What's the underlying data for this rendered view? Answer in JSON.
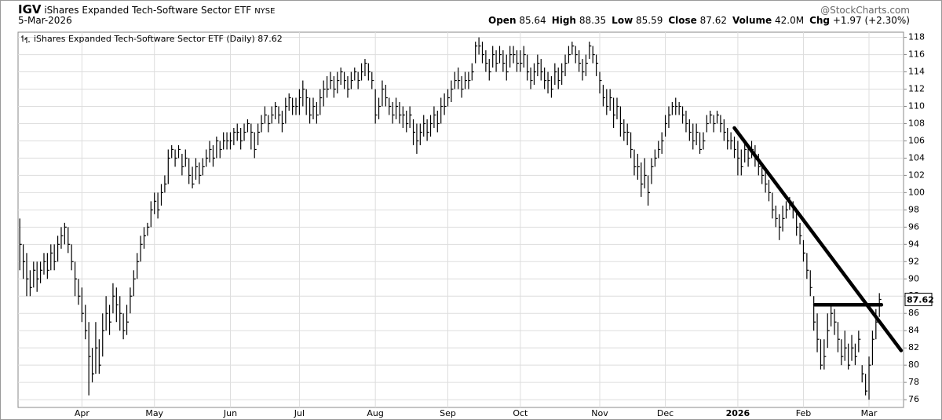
{
  "header": {
    "symbol": "IGV",
    "name": "iShares Expanded Tech-Software Sector ETF",
    "exchange": "NYSE",
    "source": "@StockCharts.com",
    "date": "5-Mar-2026",
    "stats": [
      {
        "label": "Open",
        "value": "85.64"
      },
      {
        "label": "High",
        "value": "88.35"
      },
      {
        "label": "Low",
        "value": "85.59"
      },
      {
        "label": "Close",
        "value": "87.62"
      },
      {
        "label": "Volume",
        "value": "42.0M"
      },
      {
        "label": "Chg",
        "value": "+1.97 (+2.30%)"
      }
    ]
  },
  "chart_data": {
    "type": "ohlc",
    "legend": "iShares Expanded Tech-Software Sector ETF (Daily)",
    "color": "#000000",
    "grid": true,
    "categories": [
      null,
      null,
      null,
      null,
      null,
      null,
      null,
      null,
      null,
      null,
      null,
      null,
      null,
      null,
      null,
      null,
      null,
      null,
      "Apr",
      null,
      null,
      null,
      null,
      null,
      null,
      null,
      null,
      null,
      null,
      null,
      null,
      null,
      null,
      null,
      null,
      null,
      null,
      null,
      null,
      "May",
      null,
      null,
      null,
      null,
      null,
      null,
      null,
      null,
      null,
      null,
      null,
      null,
      null,
      null,
      null,
      null,
      null,
      null,
      null,
      null,
      null,
      "Jun",
      null,
      null,
      null,
      null,
      null,
      null,
      null,
      null,
      null,
      null,
      null,
      null,
      null,
      null,
      null,
      null,
      null,
      null,
      null,
      "Jul",
      null,
      null,
      null,
      null,
      null,
      null,
      null,
      null,
      null,
      null,
      null,
      null,
      null,
      null,
      null,
      null,
      null,
      null,
      null,
      null,
      null,
      "Aug",
      null,
      null,
      null,
      null,
      null,
      null,
      null,
      null,
      null,
      null,
      null,
      null,
      null,
      null,
      null,
      null,
      null,
      null,
      null,
      null,
      "Sep",
      null,
      null,
      null,
      null,
      null,
      null,
      null,
      null,
      null,
      null,
      null,
      null,
      null,
      null,
      null,
      null,
      null,
      null,
      null,
      null,
      "Oct",
      null,
      null,
      null,
      null,
      null,
      null,
      null,
      null,
      null,
      null,
      null,
      null,
      null,
      null,
      null,
      null,
      null,
      null,
      null,
      null,
      null,
      null,
      "Nov",
      null,
      null,
      null,
      null,
      null,
      null,
      null,
      null,
      null,
      null,
      null,
      null,
      null,
      null,
      null,
      null,
      null,
      null,
      "Dec",
      null,
      null,
      null,
      null,
      null,
      null,
      null,
      null,
      null,
      null,
      null,
      null,
      null,
      null,
      null,
      null,
      null,
      null,
      null,
      null,
      "2026",
      null,
      null,
      null,
      null,
      null,
      null,
      null,
      null,
      null,
      null,
      null,
      null,
      null,
      null,
      null,
      null,
      null,
      null,
      "Feb",
      null,
      null,
      null,
      null,
      null,
      null,
      null,
      null,
      null,
      null,
      null,
      null,
      null,
      null,
      null,
      null,
      null,
      null,
      "Mar",
      null,
      null,
      null
    ],
    "high": [
      97,
      94,
      93,
      91,
      92,
      92,
      92,
      93,
      93,
      94,
      94,
      95,
      96,
      96.5,
      96,
      94,
      92,
      90,
      89,
      87,
      85,
      82,
      85,
      83,
      86,
      88,
      87,
      89.5,
      89,
      88,
      86,
      87,
      89,
      91,
      93,
      95,
      96,
      96.5,
      99,
      100,
      100,
      101,
      102,
      105,
      105.5,
      105,
      105.5,
      104.5,
      105,
      104,
      103,
      104,
      103.5,
      104,
      105,
      106,
      105.5,
      106.5,
      106,
      107,
      107,
      107,
      107.5,
      108,
      107.5,
      108,
      108.5,
      108,
      107,
      108,
      109,
      110,
      109,
      110,
      110.5,
      110,
      109.5,
      111,
      111.5,
      111,
      111,
      112,
      113,
      112,
      111,
      111,
      110.5,
      112,
      113,
      113.5,
      114,
      113.5,
      114,
      114.5,
      114,
      113.5,
      114,
      114.5,
      114,
      115,
      115.5,
      115,
      114,
      112,
      111,
      113,
      112.5,
      111,
      110.5,
      111,
      110.5,
      110,
      109.5,
      110,
      108.5,
      108,
      108,
      109,
      108.5,
      109,
      110,
      109.5,
      111,
      111.5,
      112,
      113,
      114,
      114.5,
      113.5,
      114,
      114,
      115,
      117.5,
      118,
      117.5,
      116.5,
      115.5,
      117,
      116.5,
      117,
      116.5,
      116,
      117,
      117,
      116.5,
      116.5,
      117,
      116,
      114.5,
      115,
      116,
      115.5,
      114.5,
      114,
      113.5,
      115,
      114.5,
      115,
      116,
      117,
      117.5,
      117,
      116.5,
      115.5,
      116,
      117.5,
      117,
      116,
      114,
      112.5,
      112,
      112,
      111,
      111,
      110,
      108.5,
      108,
      107,
      105,
      104.5,
      103.5,
      104,
      102,
      104,
      105,
      106,
      107,
      109,
      110,
      110.5,
      111,
      110.5,
      110,
      109.5,
      108.5,
      108,
      108,
      107,
      107,
      109,
      109.5,
      109,
      109.5,
      109,
      108.5,
      107.5,
      107,
      106.5,
      106,
      105,
      106,
      105.5,
      106,
      105.5,
      104.5,
      103.5,
      102.5,
      101.5,
      100,
      98.5,
      97.5,
      98.5,
      99,
      99.5,
      99,
      98,
      96.5,
      94.5,
      93,
      91,
      88,
      86,
      83,
      83,
      86,
      87,
      86.5,
      85,
      83,
      84,
      82.5,
      83.5,
      82.5,
      84,
      80,
      79,
      81,
      84,
      86.5,
      88.35
    ],
    "low": [
      91,
      90,
      88,
      88,
      89,
      88.5,
      89.5,
      90.5,
      90,
      91,
      91,
      92,
      93.5,
      94,
      93,
      91,
      88,
      87,
      85,
      83,
      76.5,
      78,
      79,
      79,
      81,
      84,
      83.5,
      86,
      85,
      84,
      83,
      83.5,
      86,
      88,
      90,
      92,
      93.5,
      95,
      96,
      97.5,
      97,
      98.5,
      100,
      101,
      104,
      103,
      104,
      102,
      103,
      101,
      100.5,
      101.5,
      101,
      102,
      103,
      103.5,
      103,
      104,
      104,
      105,
      105,
      105,
      105.5,
      106,
      105,
      106,
      107,
      105,
      104,
      105.5,
      107,
      108,
      107,
      108,
      108.5,
      108,
      107,
      108,
      109.5,
      109,
      109,
      109,
      110,
      109,
      108,
      108.5,
      108,
      109,
      110,
      111,
      112,
      111,
      111.5,
      112.5,
      112,
      111,
      112,
      113,
      112,
      113,
      113.5,
      113,
      112,
      108,
      108.5,
      110,
      110,
      109,
      108,
      108.5,
      108,
      107.5,
      107,
      107.5,
      105.5,
      104.5,
      105.5,
      106.5,
      106,
      106.5,
      107.5,
      107,
      108,
      109,
      110,
      110.5,
      112,
      112,
      111,
      112,
      112,
      113,
      115,
      116,
      115,
      114,
      113,
      114.5,
      114,
      115,
      114,
      113,
      114.5,
      115,
      114,
      114,
      114.5,
      113,
      112,
      112.5,
      113.5,
      113,
      112,
      111.5,
      111,
      112.5,
      112,
      112.5,
      113.5,
      115,
      116,
      115,
      114,
      113,
      113.5,
      115.5,
      115,
      113.5,
      111.5,
      110,
      109,
      109.5,
      107.5,
      108.5,
      106.5,
      106,
      105.5,
      104,
      102,
      101.5,
      99.5,
      100.5,
      98.5,
      101,
      103,
      104,
      104.5,
      106.5,
      107.5,
      109,
      109,
      109,
      108,
      107,
      106,
      105,
      105.5,
      104.5,
      105,
      107,
      108,
      107,
      108,
      107,
      106,
      105,
      105,
      104,
      102,
      102,
      103.5,
      103,
      104,
      103,
      102,
      101,
      100,
      99,
      97,
      96,
      94.5,
      95.5,
      97,
      98,
      97,
      95,
      94,
      92,
      90,
      88,
      84,
      81.5,
      79.5,
      79.5,
      82,
      84.5,
      83.5,
      81.5,
      80,
      80.5,
      79.5,
      80.5,
      80,
      81.5,
      78,
      76.5,
      76,
      80,
      83,
      85.59
    ],
    "close": [
      94,
      92,
      90,
      89,
      91,
      90,
      91,
      92,
      91,
      93,
      92,
      94,
      95,
      96,
      94,
      92,
      90,
      88,
      86,
      84,
      81,
      79,
      82,
      80,
      84,
      86,
      85,
      88,
      87,
      86,
      84,
      85,
      88,
      90,
      92,
      94,
      95,
      96,
      98,
      99,
      98,
      100,
      101,
      104,
      105,
      104,
      105,
      103,
      104,
      102,
      101,
      103,
      102,
      103,
      104,
      105,
      104,
      106,
      105,
      106,
      106,
      106,
      107,
      107,
      106,
      107,
      108,
      107,
      105,
      107,
      108,
      109,
      108,
      109,
      110,
      109,
      108,
      110,
      111,
      110,
      110,
      111,
      112,
      111,
      109,
      110,
      109,
      111,
      112,
      112,
      113,
      112,
      113,
      114,
      113,
      112,
      113,
      114,
      113,
      114,
      115,
      114,
      113,
      109,
      110,
      112,
      111,
      110,
      109,
      110,
      109,
      109,
      108,
      109,
      107,
      106,
      107,
      108,
      107,
      108,
      109,
      108,
      110,
      110,
      111,
      112,
      113,
      113,
      112,
      113,
      113,
      114,
      117,
      117,
      116,
      115,
      114,
      116,
      115,
      116,
      115,
      114,
      116,
      116,
      115,
      115,
      116,
      114,
      113,
      114,
      115,
      114,
      113,
      113,
      112,
      114,
      113,
      114,
      115,
      116,
      117,
      116,
      115,
      114,
      115,
      117,
      116,
      115,
      113,
      111,
      110,
      111,
      109,
      110,
      108,
      107,
      107,
      105,
      103,
      103,
      101,
      102,
      100,
      103,
      104,
      105,
      106,
      108,
      109,
      110,
      110,
      110,
      109,
      108,
      107,
      106,
      107,
      105,
      106,
      108,
      109,
      108,
      109,
      108,
      107,
      106,
      106,
      105,
      104,
      103,
      105,
      104,
      105,
      104,
      103,
      102,
      101,
      100,
      98,
      97,
      96,
      97,
      98,
      99,
      98,
      96,
      95,
      93,
      91,
      89,
      85,
      83,
      80,
      81,
      84,
      86,
      85,
      83,
      81,
      82,
      80,
      82,
      81,
      83,
      79,
      77,
      80,
      83,
      85,
      87.62
    ],
    "xlim": [
      -0.5,
      256
    ],
    "ylim": [
      75.1,
      118.6
    ],
    "yticks": [
      76,
      78,
      80,
      82,
      84,
      86,
      88,
      90,
      92,
      94,
      96,
      98,
      100,
      102,
      104,
      106,
      108,
      110,
      112,
      114,
      116,
      118
    ],
    "annotations": [
      {
        "x": [
          207,
          255.3
        ],
        "y": [
          107.5,
          81.7
        ]
      },
      {
        "x": [
          230.3,
          249.6
        ],
        "y": [
          87,
          87
        ]
      }
    ]
  }
}
